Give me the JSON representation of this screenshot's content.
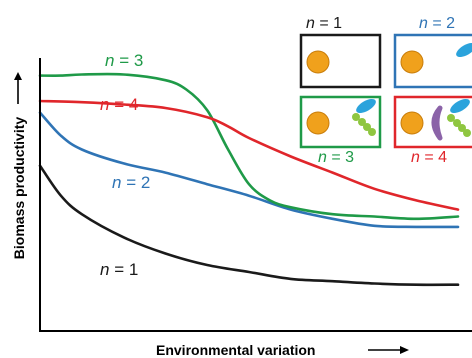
{
  "colors": {
    "n1": "#1a1a1a",
    "n2": "#2f74b5",
    "n3": "#1f9a48",
    "n4": "#e0262b",
    "orange_cell": "#f0a11c",
    "blue_cell": "#2ba3dc",
    "green_cells": "#8fc640",
    "purple_cell": "#8b63a8",
    "axis": "#000000"
  },
  "chart_data": {
    "type": "line",
    "xlabel": "Environmental variation",
    "ylabel": "Biomass productivity",
    "axis_arrows": true,
    "grid": false,
    "tick_labels": false,
    "xlim": [
      0,
      100
    ],
    "ylim": [
      0,
      100
    ],
    "note": "Conceptual curves without numeric ticks; values estimated on a 0-100 scale",
    "series": [
      {
        "name_prefix": "n",
        "name_eq": " = ",
        "name_value": "1",
        "color": "#1a1a1a",
        "x": [
          0,
          5,
          10,
          20,
          30,
          40,
          50,
          60,
          70,
          80,
          90,
          100
        ],
        "y": [
          59,
          46,
          38,
          28,
          21,
          16,
          13,
          10,
          9,
          8,
          7.5,
          7.5
        ]
      },
      {
        "name_prefix": "n",
        "name_eq": " = ",
        "name_value": "2",
        "color": "#2f74b5",
        "x": [
          0,
          5,
          10,
          20,
          30,
          40,
          50,
          60,
          70,
          80,
          90,
          100
        ],
        "y": [
          82,
          72,
          66,
          60,
          56,
          51,
          46,
          40,
          36,
          33,
          32.5,
          32.5
        ]
      },
      {
        "name_prefix": "n",
        "name_eq": " = ",
        "name_value": "3",
        "color": "#1f9a48",
        "x": [
          0,
          5,
          10,
          20,
          30,
          35,
          40,
          45,
          50,
          55,
          60,
          70,
          80,
          90,
          100
        ],
        "y": [
          98,
          98,
          98.5,
          98.5,
          96,
          92,
          83,
          66,
          51,
          44,
          41,
          38,
          37,
          36,
          37
        ]
      },
      {
        "name_prefix": "n",
        "name_eq": " = ",
        "name_value": "4",
        "color": "#e0262b",
        "x": [
          0,
          10,
          20,
          30,
          40,
          45,
          50,
          60,
          70,
          80,
          90,
          100
        ],
        "y": [
          87,
          86.5,
          85.5,
          84,
          80,
          76,
          71,
          63,
          56,
          49,
          44,
          40
        ]
      }
    ]
  },
  "legend_boxes": [
    {
      "label_prefix": "n",
      "label_eq": " = ",
      "label_value": "1",
      "color": "#1a1a1a",
      "cells": [
        "orange"
      ]
    },
    {
      "label_prefix": "n",
      "label_eq": " = ",
      "label_value": "2",
      "color": "#2f74b5",
      "cells": [
        "orange",
        "blue"
      ]
    },
    {
      "label_prefix": "n",
      "label_eq": " = ",
      "label_value": "3",
      "color": "#1f9a48",
      "cells": [
        "orange",
        "blue",
        "green"
      ]
    },
    {
      "label_prefix": "n",
      "label_eq": " = ",
      "label_value": "4",
      "color": "#e0262b",
      "cells": [
        "orange",
        "purple",
        "blue",
        "green"
      ]
    }
  ]
}
